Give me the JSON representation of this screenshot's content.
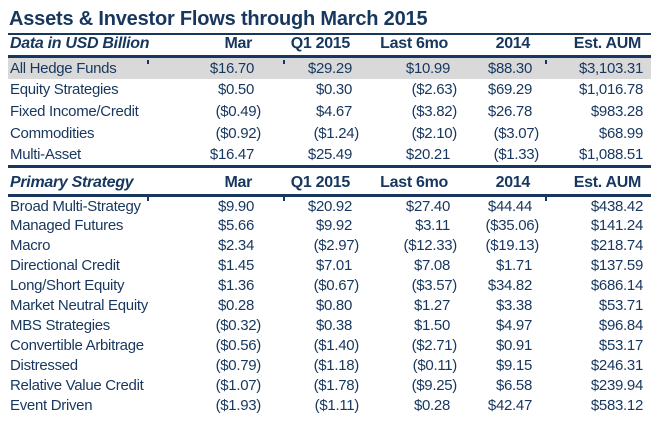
{
  "title": "Assets & Investor Flows through March 2015",
  "colors": {
    "text_navy": "#17375E",
    "highlight_gray": "#D9D9D9",
    "border_navy": "#17375E"
  },
  "chart_data": {
    "type": "table",
    "title": "Assets & Investor Flows through March 2015",
    "unit_note": "Data in USD Billion",
    "columns": [
      "Mar",
      "Q1 2015",
      "Last 6mo",
      "2014",
      "Est. AUM"
    ],
    "sections": [
      {
        "label": "Data in USD Billion",
        "rows": [
          {
            "name": "All Hedge Funds",
            "values": [
              "$16.70",
              "$29.29",
              "$10.99",
              "$88.30",
              "$3,103.31"
            ],
            "highlight": true
          },
          {
            "name": "Equity Strategies",
            "values": [
              "$0.50",
              "$0.30",
              "($2.63)",
              "$69.29",
              "$1,016.78"
            ],
            "highlight": false
          },
          {
            "name": "Fixed Income/Credit",
            "values": [
              "($0.49)",
              "$4.67",
              "($3.82)",
              "$26.78",
              "$983.28"
            ],
            "highlight": false
          },
          {
            "name": "Commodities",
            "values": [
              "($0.92)",
              "($1.24)",
              "($2.10)",
              "($3.07)",
              "$68.99"
            ],
            "highlight": false
          },
          {
            "name": "Multi-Asset",
            "values": [
              "$16.47",
              "$25.49",
              "$20.21",
              "($1.33)",
              "$1,088.51"
            ],
            "highlight": false
          }
        ]
      },
      {
        "label": "Primary Strategy",
        "rows": [
          {
            "name": "Broad Multi-Strategy",
            "values": [
              "$9.90",
              "$20.92",
              "$27.40",
              "$44.44",
              "$438.42"
            ],
            "highlight": false
          },
          {
            "name": "Managed Futures",
            "values": [
              "$5.66",
              "$9.92",
              "$3.11",
              "($35.06)",
              "$141.24"
            ],
            "highlight": false
          },
          {
            "name": "Macro",
            "values": [
              "$2.34",
              "($2.97)",
              "($12.33)",
              "($19.13)",
              "$218.74"
            ],
            "highlight": false
          },
          {
            "name": "Directional Credit",
            "values": [
              "$1.45",
              "$7.01",
              "$7.08",
              "$1.71",
              "$137.59"
            ],
            "highlight": false
          },
          {
            "name": "Long/Short Equity",
            "values": [
              "$1.36",
              "($0.67)",
              "($3.57)",
              "$34.82",
              "$686.14"
            ],
            "highlight": false
          },
          {
            "name": "Market Neutral Equity",
            "values": [
              "$0.28",
              "$0.80",
              "$1.27",
              "$3.38",
              "$53.71"
            ],
            "highlight": false
          },
          {
            "name": "MBS Strategies",
            "values": [
              "($0.32)",
              "$0.38",
              "$1.50",
              "$4.97",
              "$96.84"
            ],
            "highlight": false
          },
          {
            "name": "Convertible Arbitrage",
            "values": [
              "($0.56)",
              "($1.40)",
              "($2.71)",
              "$0.91",
              "$53.17"
            ],
            "highlight": false
          },
          {
            "name": "Distressed",
            "values": [
              "($0.79)",
              "($1.18)",
              "($0.11)",
              "$9.15",
              "$246.31"
            ],
            "highlight": false
          },
          {
            "name": "Relative Value Credit",
            "values": [
              "($1.07)",
              "($1.78)",
              "($9.25)",
              "$6.58",
              "$239.94"
            ],
            "highlight": false
          },
          {
            "name": "Event Driven",
            "values": [
              "($1.93)",
              "($1.11)",
              "$0.28",
              "$42.47",
              "$583.12"
            ],
            "highlight": false
          }
        ]
      }
    ]
  }
}
